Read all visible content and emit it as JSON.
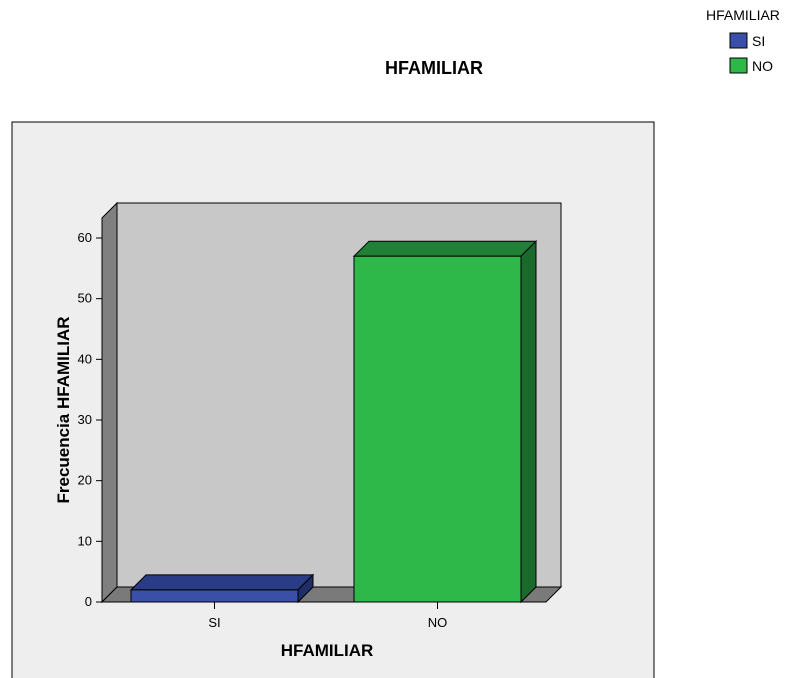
{
  "chart_data": {
    "type": "bar",
    "title": "HFAMILIAR",
    "xlabel": "HFAMILIAR",
    "ylabel": "Frecuencia HFAMILIAR",
    "categories": [
      "SI",
      "NO"
    ],
    "values": [
      2,
      57
    ],
    "ylim": [
      0,
      60
    ],
    "yticks": [
      0,
      10,
      20,
      30,
      40,
      50,
      60
    ],
    "grid": false,
    "legend": {
      "title": "HFAMILIAR",
      "position": "top-right",
      "entries": [
        "SI",
        "NO"
      ]
    },
    "colors": {
      "SI": {
        "front": "#3a50a8",
        "top": "#2a3c85",
        "side": "#1f2e6a"
      },
      "NO": {
        "front": "#2fb84a",
        "top": "#208035",
        "side": "#1a6a2b"
      },
      "plot_back": "#c8c8c8",
      "plot_floor": "#7a7a7a",
      "plot_left_wall": "#808080",
      "outer_bg": "#eeeeee"
    }
  }
}
